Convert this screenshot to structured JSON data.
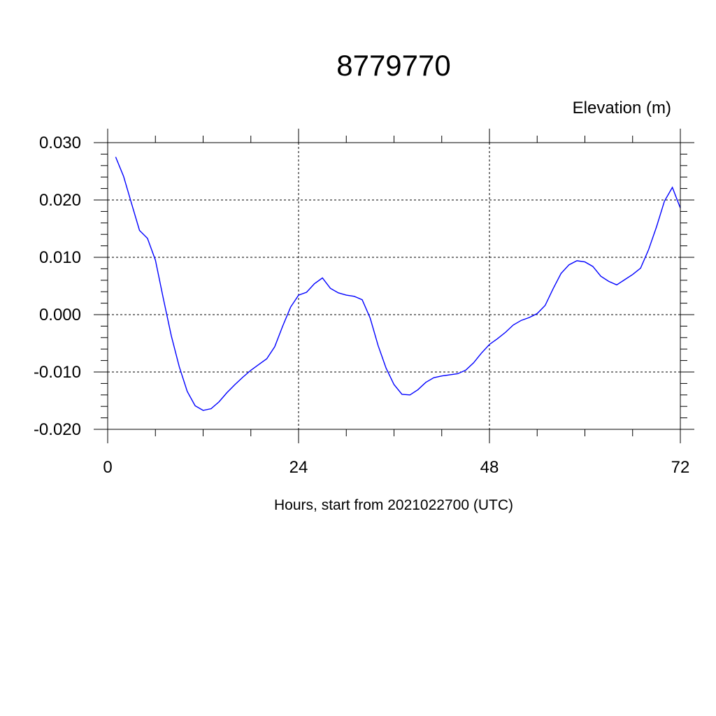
{
  "chart_data": {
    "type": "line",
    "title": "8779770",
    "ylabel": "Elevation (m)",
    "xlabel": "Hours, start from 2021022700 (UTC)",
    "xlim": [
      0,
      72
    ],
    "ylim": [
      -0.02,
      0.03
    ],
    "xticks": [
      0,
      24,
      48,
      72
    ],
    "xtick_labels": [
      "0",
      "24",
      "48",
      "72"
    ],
    "yticks": [
      0.03,
      0.02,
      0.01,
      0.0,
      -0.01,
      -0.02
    ],
    "ytick_labels": [
      "0.030",
      "0.020",
      "0.010",
      "0.000",
      "-0.010",
      "-0.020"
    ],
    "grid": true,
    "line_color": "#0000ff",
    "series": [
      {
        "x": [
          1,
          2,
          3,
          4,
          5,
          6,
          7,
          8,
          9,
          10,
          11,
          12,
          13,
          14,
          15,
          16,
          17,
          18,
          19,
          20,
          21,
          22,
          23,
          24,
          25,
          26,
          27,
          28,
          29,
          30,
          31,
          32,
          33,
          34,
          35,
          36,
          37,
          38,
          39,
          40,
          41,
          42,
          43,
          44,
          45,
          46,
          47,
          48,
          49,
          50,
          51,
          52,
          53,
          54,
          55,
          56,
          57,
          58,
          59,
          60,
          61,
          62,
          63,
          64,
          65,
          66,
          67,
          68,
          69,
          70,
          71,
          72
        ],
        "values": [
          0.0275,
          0.0241,
          0.0194,
          0.0147,
          0.0133,
          0.0095,
          0.0028,
          -0.0037,
          -0.0091,
          -0.0134,
          -0.0159,
          -0.0167,
          -0.0164,
          -0.0152,
          -0.0136,
          -0.0122,
          -0.0109,
          -0.0097,
          -0.0087,
          -0.0077,
          -0.0056,
          -0.002,
          0.0013,
          0.0034,
          0.0039,
          0.0054,
          0.0064,
          0.0046,
          0.0038,
          0.0034,
          0.0032,
          0.0026,
          -0.0006,
          -0.0054,
          -0.0093,
          -0.0122,
          -0.0139,
          -0.014,
          -0.0131,
          -0.0118,
          -0.011,
          -0.0107,
          -0.0105,
          -0.0103,
          -0.0097,
          -0.0084,
          -0.0067,
          -0.0052,
          -0.0042,
          -0.0031,
          -0.0018,
          -0.001,
          -0.0005,
          0.0002,
          0.0016,
          0.0045,
          0.0072,
          0.0087,
          0.0094,
          0.0092,
          0.0084,
          0.0067,
          0.0058,
          0.0052,
          0.0061,
          0.007,
          0.0081,
          0.0113,
          0.0153,
          0.0198,
          0.0222,
          0.0186
        ]
      }
    ]
  }
}
